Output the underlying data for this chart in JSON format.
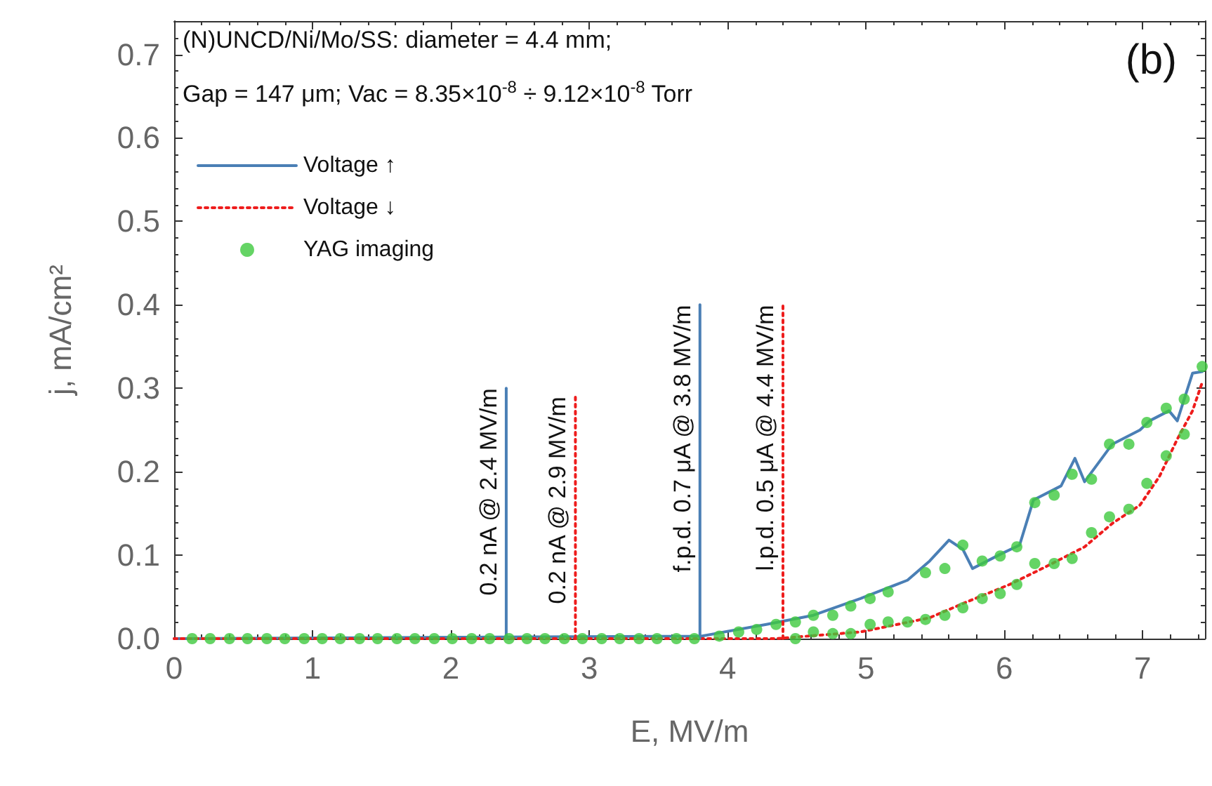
{
  "chart_data": {
    "type": "line",
    "title": "(N)UNCD/Ni/Mo/SS: diameter = 4.4 mm;",
    "subtitle": "Gap = 147 μm; Vac = 8.35×10$^{-8}$ ÷ 9.12×10$^{-8}$ Torr",
    "xlabel": "E, MV/m",
    "ylabel": "j, mA/cm²",
    "annotations": [
      "(b)",
      {
        "text": "0.2 nA @ 2.4 MV/m",
        "x": 2.4,
        "y": 0.3
      },
      {
        "text": "0.2 nA @ 2.9 MV/m",
        "x": 2.9,
        "y": 0.29
      },
      {
        "text": "f.p.d. 0.7 μA @ 3.8 MV/m",
        "x": 3.8,
        "y": 0.4
      },
      {
        "text": "l.p.d. 0.5 μA @ 4.4 MV/m",
        "x": 4.4,
        "y": 0.4
      }
    ],
    "xlim": [
      0,
      7.45
    ],
    "xticks": [
      0,
      1,
      2,
      3,
      4,
      5,
      6,
      7
    ],
    "ylim": [
      0,
      0.74
    ],
    "yticks": [
      {
        "value": 0,
        "label": "0.0"
      },
      {
        "value": 0.1,
        "label": "0.1"
      },
      {
        "value": 0.2,
        "label": "0.2"
      },
      {
        "value": 0.3,
        "label": "0.3"
      },
      {
        "value": 0.4,
        "label": "0.4"
      },
      {
        "value": 0.5,
        "label": "0.5"
      },
      {
        "value": 0.6,
        "label": "0.6"
      },
      {
        "value": 0.7,
        "label": "0.7"
      }
    ],
    "grid": false,
    "legend": "top left",
    "series": [
      {
        "name": "Voltage ↑",
        "color": "#4a7fb5",
        "line_style": "solid",
        "marker": "none",
        "x": [
          0,
          3.81,
          4.28,
          4.62,
          4.96,
          5.3,
          5.46,
          5.6,
          5.7,
          5.77,
          5.97,
          6.11,
          6.21,
          6.41,
          6.51,
          6.58,
          6.78,
          6.98,
          7.05,
          7.19,
          7.25,
          7.36,
          7.43
        ],
        "values": [
          0,
          0.003,
          0.017,
          0.028,
          0.048,
          0.07,
          0.093,
          0.118,
          0.107,
          0.084,
          0.101,
          0.112,
          0.166,
          0.183,
          0.216,
          0.188,
          0.233,
          0.25,
          0.261,
          0.273,
          0.261,
          0.318,
          0.32
        ]
      },
      {
        "name": "Voltage ↓",
        "color": "#ee1c1c",
        "line_style": "dotted",
        "marker": "none",
        "x": [
          0,
          4.35,
          4.96,
          5.46,
          5.7,
          6.04,
          6.31,
          6.58,
          6.78,
          6.98,
          7.12,
          7.25,
          7.36,
          7.43
        ],
        "values": [
          0,
          0,
          0.008,
          0.025,
          0.042,
          0.065,
          0.087,
          0.11,
          0.138,
          0.16,
          0.194,
          0.239,
          0.273,
          0.307
        ]
      },
      {
        "name": "YAG imaging",
        "type": "scatter",
        "color": "#3ec93e",
        "marker": "circle",
        "x": [
          0.13,
          0.26,
          0.4,
          0.53,
          0.67,
          0.8,
          0.94,
          1.07,
          1.2,
          1.34,
          1.47,
          1.61,
          1.74,
          1.88,
          2.01,
          2.15,
          2.28,
          2.42,
          2.55,
          2.68,
          2.82,
          2.95,
          3.09,
          3.22,
          3.36,
          3.49,
          3.63,
          3.76,
          3.94,
          4.08,
          4.21,
          4.35,
          4.49,
          4.62,
          4.76,
          4.89,
          5.03,
          5.16,
          5.43,
          5.57,
          5.7,
          5.84,
          5.97,
          6.09,
          6.22,
          6.36,
          6.49,
          6.63,
          6.76,
          6.9,
          7.03,
          7.17,
          7.3,
          7.43,
          4.49,
          4.62,
          4.76,
          4.89,
          5.03,
          5.16,
          5.3,
          5.43,
          5.57,
          5.7,
          5.84,
          5.97,
          6.09,
          6.22,
          6.36,
          6.49,
          6.63,
          6.76,
          6.9,
          7.03,
          7.17,
          7.3
        ],
        "values": [
          0,
          0,
          0,
          0,
          0,
          0,
          0,
          0,
          0,
          0,
          0,
          0,
          0,
          0,
          0,
          0,
          0,
          0,
          0,
          0,
          0,
          0,
          0,
          0,
          0,
          0,
          0,
          0,
          0.003,
          0.008,
          0.011,
          0.017,
          0.02,
          0.028,
          0.028,
          0.039,
          0.048,
          0.056,
          0.079,
          0.084,
          0.112,
          0.093,
          0.099,
          0.11,
          0.163,
          0.172,
          0.197,
          0.191,
          0.233,
          0.233,
          0.259,
          0.276,
          0.287,
          0.326,
          0,
          0.008,
          0.006,
          0.006,
          0.017,
          0.02,
          0.02,
          0.023,
          0.028,
          0.037,
          0.048,
          0.054,
          0.065,
          0.09,
          0.09,
          0.096,
          0.127,
          0.146,
          0.155,
          0.186,
          0.219,
          0.245
        ]
      },
      {
        "type": "line",
        "color": "#4a7fb5",
        "line_style": "solid",
        "marker": "none",
        "x": [
          2.4,
          2.4
        ],
        "values": [
          0,
          0.3
        ]
      },
      {
        "type": "line",
        "color": "#ee1c1c",
        "line_style": "dotted",
        "marker": "none",
        "x": [
          2.9,
          2.9
        ],
        "values": [
          0,
          0.29
        ]
      },
      {
        "type": "line",
        "color": "#4a7fb5",
        "line_style": "solid",
        "marker": "none",
        "x": [
          3.8,
          3.8
        ],
        "values": [
          0,
          0.4
        ]
      },
      {
        "type": "line",
        "color": "#ee1c1c",
        "line_style": "dotted",
        "marker": "none",
        "x": [
          4.4,
          4.4
        ],
        "values": [
          0,
          0.4
        ]
      }
    ]
  }
}
